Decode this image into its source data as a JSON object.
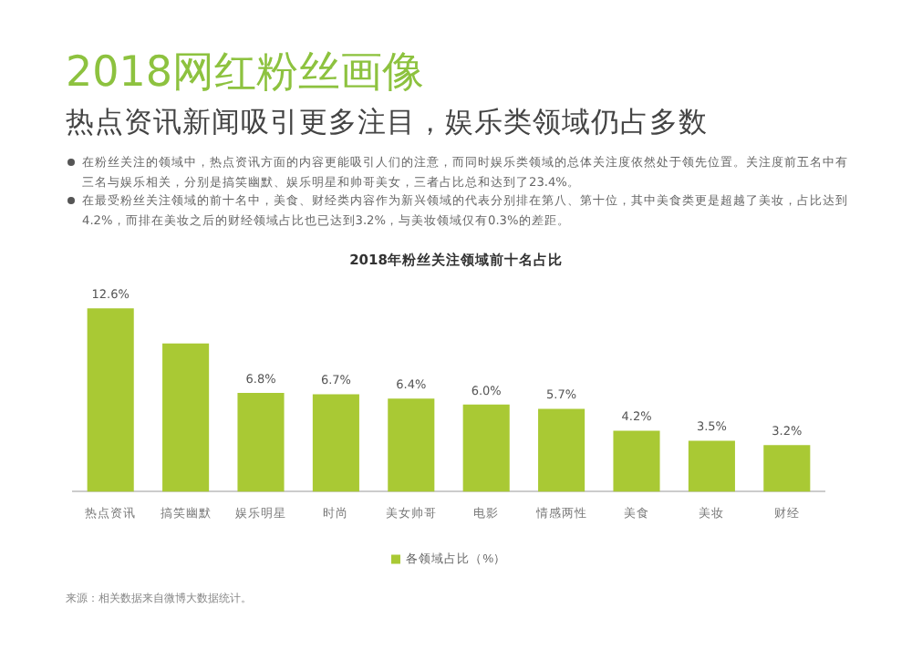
{
  "chart_data": {
    "type": "bar",
    "title": "2018网红粉丝画像",
    "subtitle": "热点资讯新闻吸引更多注目，娱乐类领域仍占多数",
    "annotations": [
      "在粉丝关注的领域中，热点资讯方面的内容更能吸引人们的注意，而同时娱乐类领域的总体关注度依然处于领先位置。关注度前五名中有三名与娱乐相关，分别是搞笑幽默、娱乐明星和帅哥美女，三者占比总和达到了23.4%。",
      "在最受粉丝关注领域的前十名中，美食、财经类内容作为新兴领域的代表分别排在第八、第十位，其中美食类更是超越了美妆，占比达到4.2%，而排在美妆之后的财经领域占比也已达到3.2%，与美妆领域仅有0.3%的差距。",
      "2018年粉丝关注领域前十名占比",
      "来源：相关数据来自微博大数据统计。"
    ],
    "categories": [
      "热点资讯",
      "搞笑幽默",
      "娱乐明星",
      "时尚",
      "美女帅哥",
      "电影",
      "情感两性",
      "美食",
      "美妆",
      "财经"
    ],
    "series": [
      {
        "name": "各领域占比（%）",
        "color": "#a9c934",
        "values": [
          12.6,
          10.2,
          6.8,
          6.7,
          6.4,
          6.0,
          5.7,
          4.2,
          3.5,
          3.2
        ],
        "value_labels": [
          "12.6%",
          null,
          "6.8%",
          "6.7%",
          "6.4%",
          "6.0%",
          "5.7%",
          "4.2%",
          "3.5%",
          "3.2%"
        ]
      }
    ],
    "legend": "bottom",
    "grid": false
  }
}
